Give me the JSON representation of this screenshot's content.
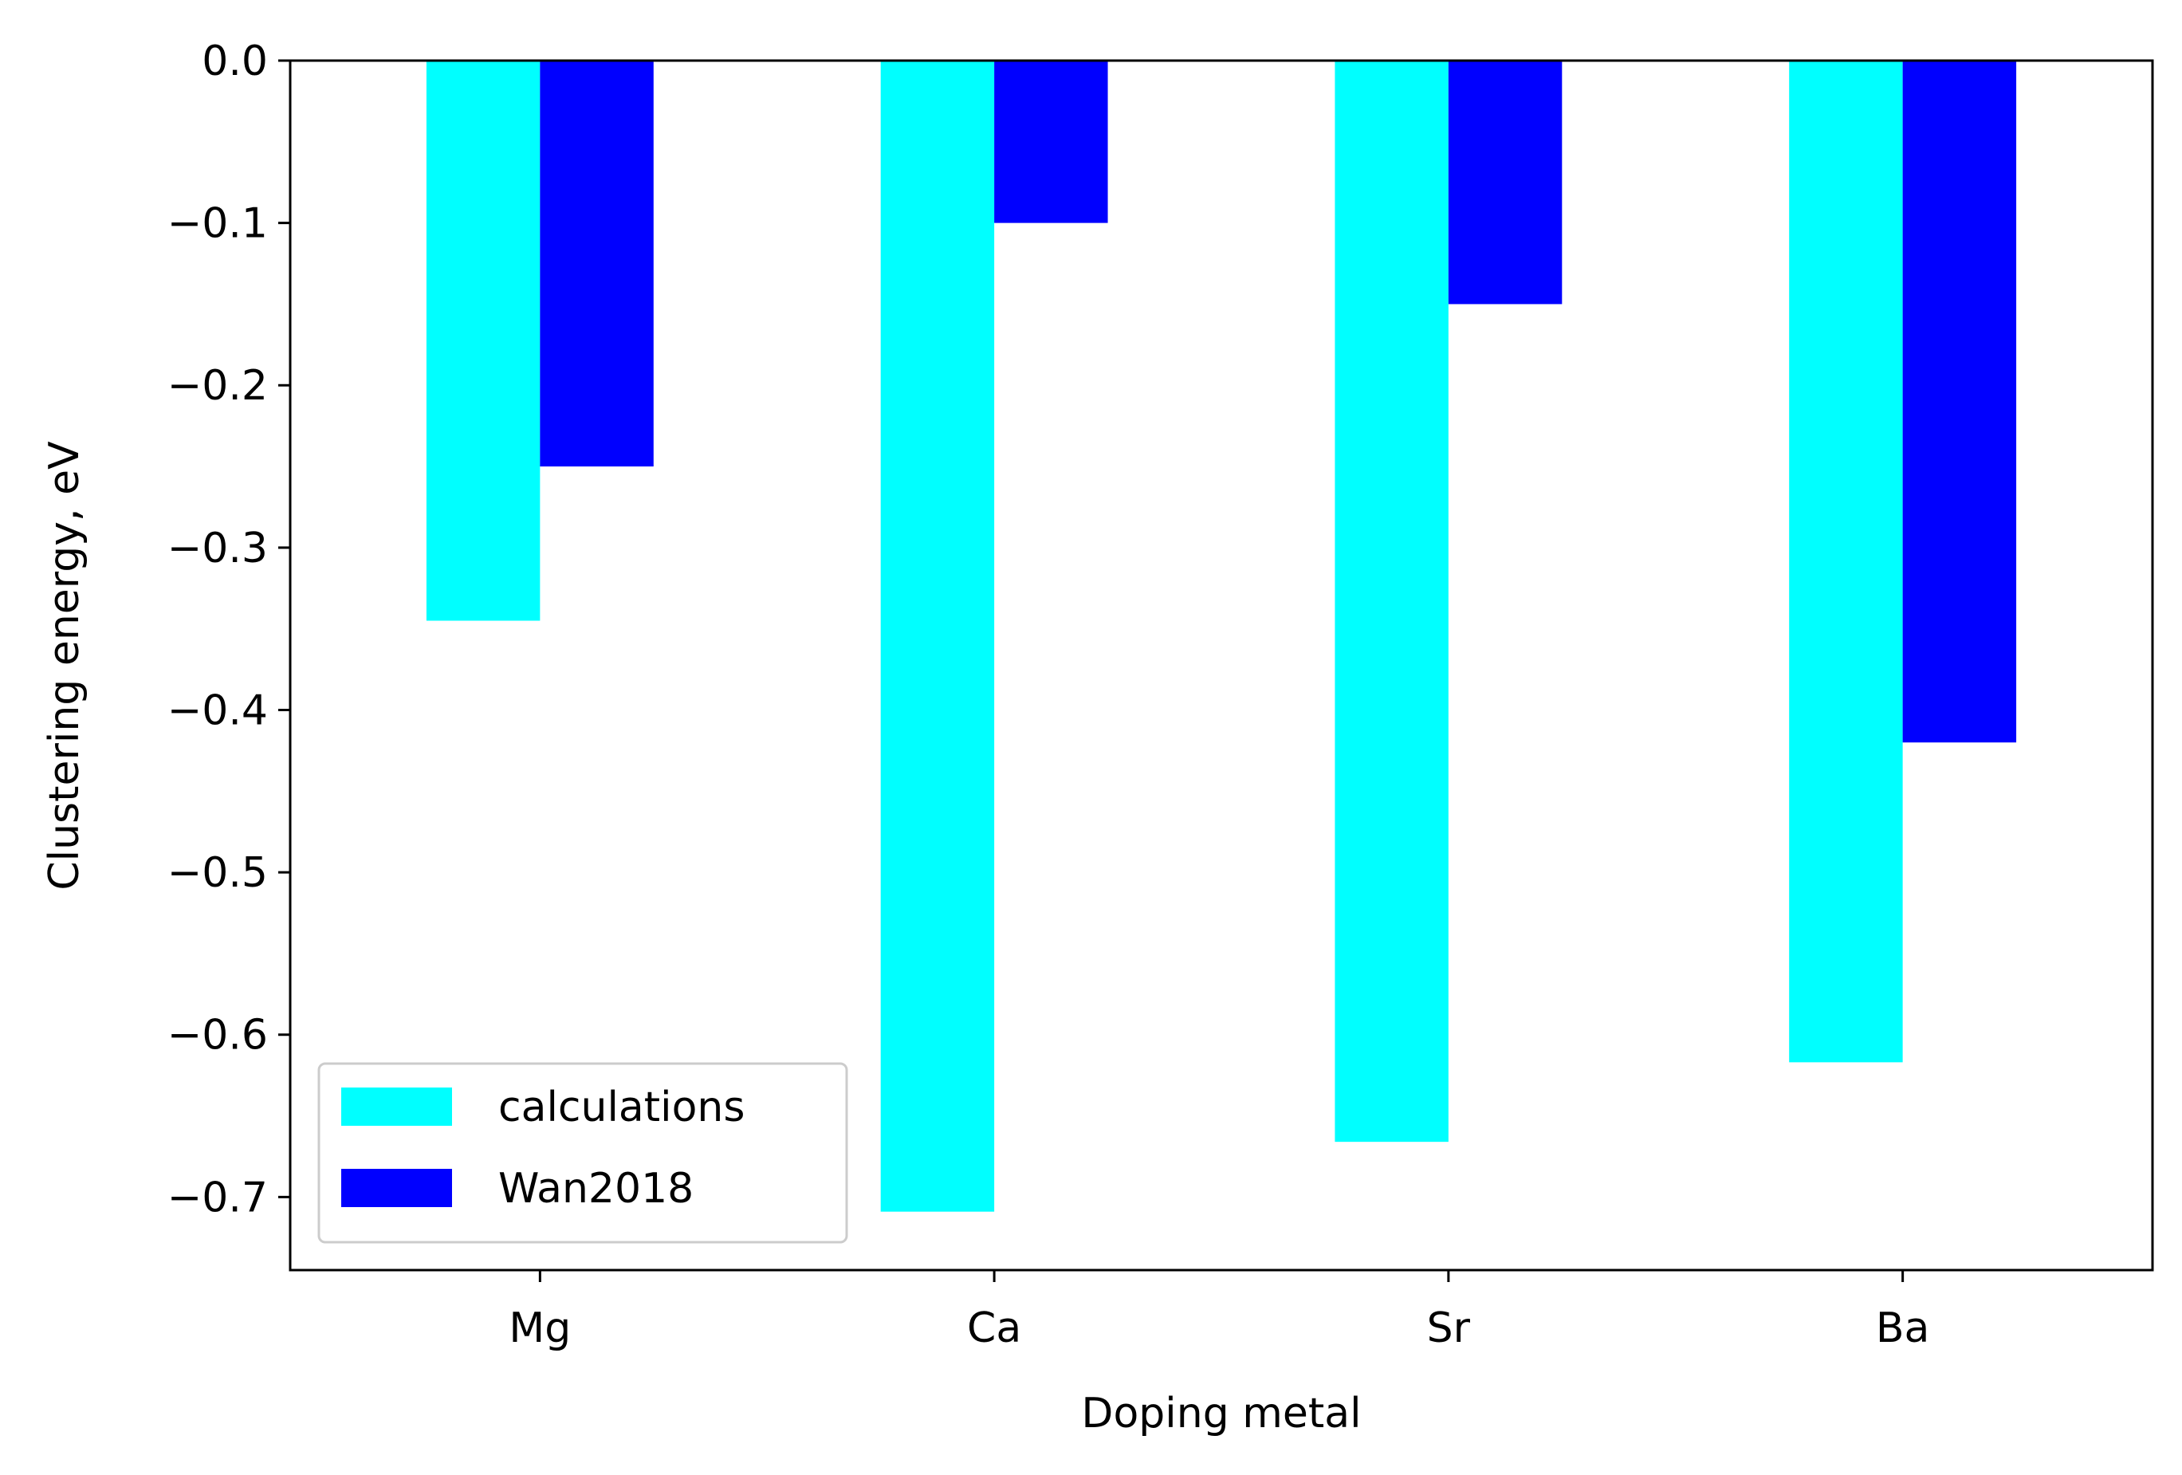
{
  "chart_data": {
    "type": "bar",
    "title": "",
    "xlabel": "Doping metal",
    "ylabel": "Clustering energy, eV",
    "categories": [
      "Mg",
      "Ca",
      "Sr",
      "Ba"
    ],
    "series": [
      {
        "name": "calculations",
        "color": "#00FFFF",
        "values": [
          -0.345,
          -0.709,
          -0.666,
          -0.617
        ]
      },
      {
        "name": "Wan2018",
        "color": "#0000FF",
        "values": [
          -0.25,
          -0.1,
          -0.15,
          -0.42
        ]
      }
    ],
    "ylim": [
      -0.745,
      0.0
    ],
    "yticks": [
      0.0,
      -0.1,
      -0.2,
      -0.3,
      -0.4,
      -0.5,
      -0.6,
      -0.7
    ],
    "ytick_labels": [
      "0.0",
      "−0.1",
      "−0.2",
      "−0.3",
      "−0.4",
      "−0.5",
      "−0.6",
      "−0.7"
    ],
    "grid": false,
    "legend_position": "lower-left"
  }
}
